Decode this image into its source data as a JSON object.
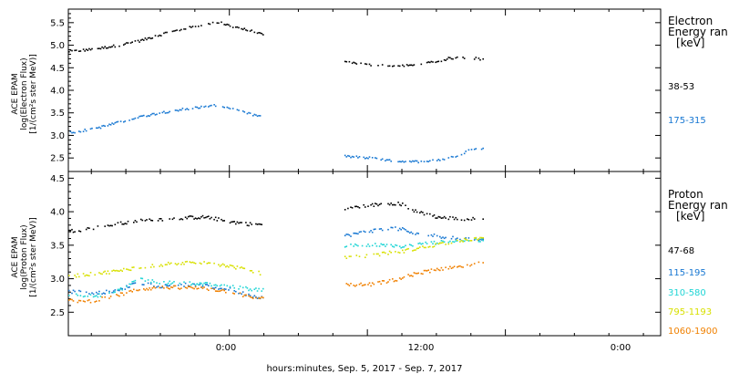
{
  "xlabel": "hours:minutes, Sep.  5, 2017 - Sep.  7, 2017",
  "x_tick_labels": [
    "0:00",
    "12:00",
    "0:00"
  ],
  "chart_data": [
    {
      "type": "scatter",
      "ylabel_lines": [
        "ACE EPAM",
        "log(Electron Flux)",
        "[1/(cm²s ster MeV)]"
      ],
      "legend_header": [
        "Electron",
        "Energy ran",
        "[keV]"
      ],
      "x_hours_range": [
        -14,
        37.5
      ],
      "ylim": [
        2.2,
        5.8
      ],
      "y_ticks": [
        "2.5",
        "3.0",
        "3.5",
        "4.0",
        "4.5",
        "5.0",
        "5.5"
      ],
      "y_tick_values": [
        2.5,
        3.0,
        3.5,
        4.0,
        4.5,
        5.0,
        5.5
      ],
      "series": [
        {
          "name": "38-53",
          "color": "#000000",
          "points": [
            [
              -14,
              4.88
            ],
            [
              -12,
              4.92
            ],
            [
              -10,
              5.0
            ],
            [
              -8,
              5.1
            ],
            [
              -6,
              5.25
            ],
            [
              -4,
              5.38
            ],
            [
              -2,
              5.48
            ],
            [
              -1,
              5.52
            ],
            [
              0,
              5.45
            ],
            [
              1.5,
              5.35
            ],
            [
              3,
              5.25
            ],
            [
              10,
              4.65
            ],
            [
              12,
              4.58
            ],
            [
              14,
              4.55
            ],
            [
              16,
              4.57
            ],
            [
              18,
              4.65
            ],
            [
              19,
              4.72
            ],
            [
              20,
              4.75
            ],
            [
              21,
              4.73
            ],
            [
              22,
              4.71
            ]
          ]
        },
        {
          "name": "175-315",
          "color": "#1777D2",
          "points": [
            [
              -14,
              3.08
            ],
            [
              -12,
              3.15
            ],
            [
              -10,
              3.28
            ],
            [
              -8,
              3.42
            ],
            [
              -6,
              3.52
            ],
            [
              -4,
              3.6
            ],
            [
              -2,
              3.66
            ],
            [
              -1,
              3.68
            ],
            [
              0,
              3.62
            ],
            [
              1.5,
              3.5
            ],
            [
              3,
              3.42
            ],
            [
              10,
              2.55
            ],
            [
              12,
              2.52
            ],
            [
              14,
              2.45
            ],
            [
              16,
              2.43
            ],
            [
              18,
              2.47
            ],
            [
              19,
              2.5
            ],
            [
              20,
              2.6
            ],
            [
              21,
              2.7
            ],
            [
              22,
              2.73
            ]
          ]
        }
      ]
    },
    {
      "type": "scatter",
      "ylabel_lines": [
        "ACE EPAM",
        "log(Proton Flux)",
        "[1/(cm²s ster MeV)]"
      ],
      "legend_header": [
        "Proton",
        "Energy ran",
        "[keV]"
      ],
      "x_hours_range": [
        -14,
        37.5
      ],
      "ylim": [
        2.15,
        4.6
      ],
      "y_ticks": [
        "2.5",
        "3.0",
        "3.5",
        "4.0",
        "4.5"
      ],
      "y_tick_values": [
        2.5,
        3.0,
        3.5,
        4.0,
        4.5
      ],
      "series": [
        {
          "name": "47-68",
          "color": "#000000",
          "points": [
            [
              -14,
              3.72
            ],
            [
              -12,
              3.76
            ],
            [
              -10,
              3.82
            ],
            [
              -8,
              3.87
            ],
            [
              -6,
              3.9
            ],
            [
              -4,
              3.92
            ],
            [
              -2,
              3.93
            ],
            [
              0,
              3.86
            ],
            [
              2,
              3.82
            ],
            [
              3,
              3.82
            ],
            [
              10,
              4.05
            ],
            [
              12,
              4.1
            ],
            [
              14,
              4.14
            ],
            [
              15,
              4.12
            ],
            [
              16,
              4.02
            ],
            [
              18,
              3.93
            ],
            [
              20,
              3.9
            ],
            [
              22,
              3.9
            ]
          ]
        },
        {
          "name": "115-195",
          "color": "#1777D2",
          "points": [
            [
              -14,
              2.82
            ],
            [
              -12,
              2.8
            ],
            [
              -10,
              2.82
            ],
            [
              -8,
              2.95
            ],
            [
              -6,
              2.9
            ],
            [
              -4,
              2.92
            ],
            [
              -2,
              2.9
            ],
            [
              0,
              2.85
            ],
            [
              2,
              2.75
            ],
            [
              3,
              2.73
            ],
            [
              10,
              3.65
            ],
            [
              12,
              3.72
            ],
            [
              14,
              3.76
            ],
            [
              15,
              3.75
            ],
            [
              16,
              3.68
            ],
            [
              18,
              3.65
            ],
            [
              20,
              3.6
            ],
            [
              22,
              3.6
            ]
          ]
        },
        {
          "name": "310-580",
          "color": "#20D5D5",
          "points": [
            [
              -14,
              2.78
            ],
            [
              -12,
              2.75
            ],
            [
              -10,
              2.8
            ],
            [
              -8,
              3.0
            ],
            [
              -6,
              2.95
            ],
            [
              -4,
              2.95
            ],
            [
              -2,
              2.93
            ],
            [
              0,
              2.9
            ],
            [
              2,
              2.85
            ],
            [
              3,
              2.85
            ],
            [
              10,
              3.5
            ],
            [
              12,
              3.52
            ],
            [
              14,
              3.5
            ],
            [
              15,
              3.48
            ],
            [
              16,
              3.52
            ],
            [
              18,
              3.55
            ],
            [
              20,
              3.58
            ],
            [
              22,
              3.58
            ]
          ]
        },
        {
          "name": "795-1193",
          "color": "#D8E000",
          "points": [
            [
              -14,
              3.05
            ],
            [
              -12,
              3.08
            ],
            [
              -10,
              3.12
            ],
            [
              -8,
              3.18
            ],
            [
              -6,
              3.22
            ],
            [
              -4,
              3.25
            ],
            [
              -2,
              3.25
            ],
            [
              0,
              3.2
            ],
            [
              2,
              3.12
            ],
            [
              3,
              3.08
            ],
            [
              10,
              3.32
            ],
            [
              12,
              3.35
            ],
            [
              14,
              3.4
            ],
            [
              15,
              3.42
            ],
            [
              16,
              3.45
            ],
            [
              18,
              3.52
            ],
            [
              20,
              3.58
            ],
            [
              22,
              3.62
            ]
          ]
        },
        {
          "name": "1060-1900",
          "color": "#F08000",
          "points": [
            [
              -14,
              2.68
            ],
            [
              -12,
              2.68
            ],
            [
              -10,
              2.75
            ],
            [
              -8,
              2.85
            ],
            [
              -6,
              2.88
            ],
            [
              -4,
              2.88
            ],
            [
              -2,
              2.86
            ],
            [
              0,
              2.82
            ],
            [
              2,
              2.72
            ],
            [
              3,
              2.72
            ],
            [
              10,
              2.92
            ],
            [
              12,
              2.92
            ],
            [
              14,
              2.98
            ],
            [
              15,
              3.02
            ],
            [
              16,
              3.08
            ],
            [
              18,
              3.15
            ],
            [
              20,
              3.2
            ],
            [
              22,
              3.25
            ]
          ]
        }
      ]
    }
  ]
}
